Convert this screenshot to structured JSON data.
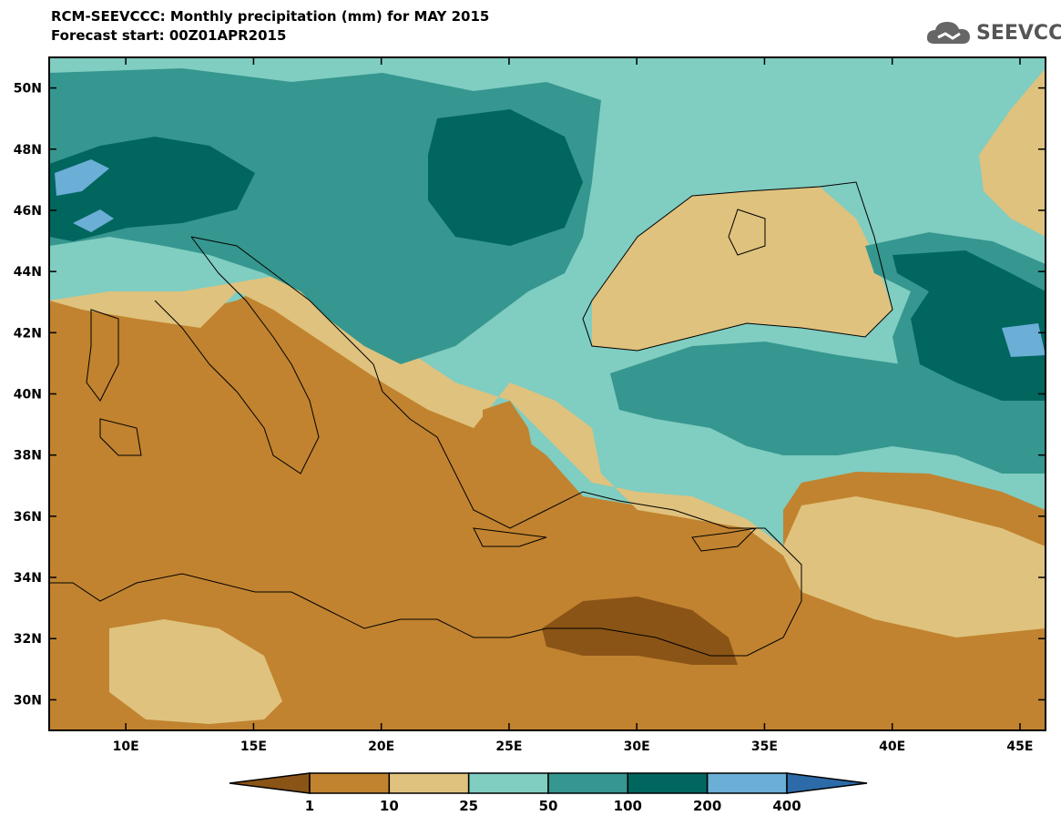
{
  "title_line1": "RCM-SEEVCCC: Monthly precipitation (mm) for MAY 2015",
  "title_line2": "Forecast start: 00Z01APR2015",
  "logo_text": "SEEVCCC",
  "map": {
    "lon_range": [
      7,
      46
    ],
    "lat_range": [
      29,
      51
    ],
    "x_ticks": [
      {
        "lon": 10,
        "label": "10E"
      },
      {
        "lon": 15,
        "label": "15E"
      },
      {
        "lon": 20,
        "label": "20E"
      },
      {
        "lon": 25,
        "label": "25E"
      },
      {
        "lon": 30,
        "label": "30E"
      },
      {
        "lon": 35,
        "label": "35E"
      },
      {
        "lon": 40,
        "label": "40E"
      },
      {
        "lon": 45,
        "label": "45E"
      }
    ],
    "y_ticks": [
      {
        "lat": 50,
        "label": "50N"
      },
      {
        "lat": 48,
        "label": "48N"
      },
      {
        "lat": 46,
        "label": "46N"
      },
      {
        "lat": 44,
        "label": "44N"
      },
      {
        "lat": 42,
        "label": "42N"
      },
      {
        "lat": 40,
        "label": "40N"
      },
      {
        "lat": 38,
        "label": "38N"
      },
      {
        "lat": 36,
        "label": "36N"
      },
      {
        "lat": 34,
        "label": "34N"
      },
      {
        "lat": 32,
        "label": "32N"
      },
      {
        "lat": 30,
        "label": "30N"
      }
    ]
  },
  "colorbar": {
    "colors": [
      "#8a5416",
      "#c1832f",
      "#dfc27d",
      "#80cdc1",
      "#35978f",
      "#01665e",
      "#6baed6",
      "#2c6ba8"
    ],
    "labels": [
      "1",
      "10",
      "25",
      "50",
      "100",
      "200",
      "400"
    ]
  }
}
